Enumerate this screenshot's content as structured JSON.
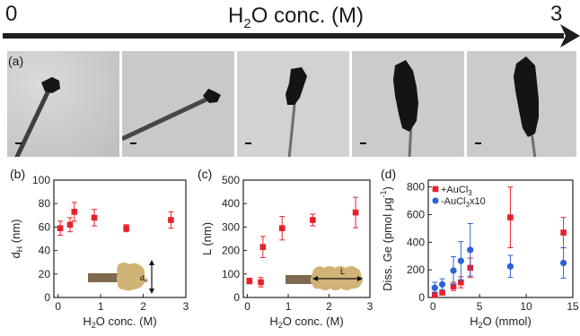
{
  "header": {
    "left_value": "0",
    "right_value": "3",
    "title_main": "H",
    "title_sub": "2",
    "title_rest": "O conc. (M)"
  },
  "panel_a": {
    "label": "(a)",
    "image_count": 5
  },
  "panel_b": {
    "label": "(b)",
    "inset_label_main": "d",
    "inset_label_sub": "H"
  },
  "panel_c": {
    "label": "(c)",
    "inset_label": "L"
  },
  "panel_d": {
    "label": "(d)"
  },
  "colors": {
    "red": "#e8202a",
    "blue": "#2a62d9",
    "rod": "#7f6a4f",
    "coat": "#d2b377"
  },
  "chart_data": [
    {
      "id": "b",
      "type": "scatter",
      "xlabel_main": "H",
      "xlabel_sub": "2",
      "xlabel_rest": "O conc. (M)",
      "ylabel_main": "d",
      "ylabel_sub": "H",
      "ylabel_rest": " (nm)",
      "xlim": [
        -0.1,
        3
      ],
      "ylim": [
        0,
        100
      ],
      "xticks": [
        "0",
        "1",
        "2",
        "3"
      ],
      "yticks": [
        "0",
        "20",
        "40",
        "60",
        "80",
        "100"
      ],
      "series": [
        {
          "color": "#e8202a",
          "points": [
            {
              "x": 0.05,
              "y": 59,
              "err": 6
            },
            {
              "x": 0.28,
              "y": 62,
              "err": 6
            },
            {
              "x": 0.38,
              "y": 73,
              "err": 8
            },
            {
              "x": 0.85,
              "y": 68,
              "err": 7
            },
            {
              "x": 1.6,
              "y": 59,
              "err": 3
            },
            {
              "x": 2.65,
              "y": 66,
              "err": 7
            }
          ]
        }
      ]
    },
    {
      "id": "c",
      "type": "scatter",
      "xlabel_main": "H",
      "xlabel_sub": "2",
      "xlabel_rest": "O conc. (M)",
      "ylabel_main": "L",
      "ylabel_sub": "",
      "ylabel_rest": " (nm)",
      "xlim": [
        -0.1,
        3
      ],
      "ylim": [
        0,
        500
      ],
      "xticks": [
        "0",
        "1",
        "2",
        "3"
      ],
      "yticks": [
        "0",
        "100",
        "200",
        "300",
        "400",
        "500"
      ],
      "series": [
        {
          "color": "#e8202a",
          "points": [
            {
              "x": 0.05,
              "y": 70,
              "err": 12
            },
            {
              "x": 0.33,
              "y": 65,
              "err": 20
            },
            {
              "x": 0.38,
              "y": 215,
              "err": 45
            },
            {
              "x": 0.85,
              "y": 295,
              "err": 50
            },
            {
              "x": 1.6,
              "y": 330,
              "err": 25
            },
            {
              "x": 2.65,
              "y": 362,
              "err": 65
            }
          ]
        }
      ]
    },
    {
      "id": "d",
      "type": "scatter",
      "xlabel_main": "H",
      "xlabel_sub": "2",
      "xlabel_rest": "O (mmol)",
      "ylabel_main": "Diss. Ge (pmol μg",
      "ylabel_sup": "-1",
      "ylabel_rest": ")",
      "xlim": [
        -0.5,
        15
      ],
      "ylim": [
        0,
        850
      ],
      "xticks": [
        "0",
        "5",
        "10",
        "15"
      ],
      "yticks": [
        "0",
        "200",
        "400",
        "600",
        "800"
      ],
      "legend_position": "top-left",
      "series": [
        {
          "name": "+AuCl3",
          "name_main": "+AuCl",
          "name_sub": "3",
          "name_rest": "",
          "color": "#e8202a",
          "marker": "square",
          "points": [
            {
              "x": 0.2,
              "y": 20,
              "err": 5
            },
            {
              "x": 1.0,
              "y": 35,
              "err": 8
            },
            {
              "x": 2.2,
              "y": 80,
              "err": 30
            },
            {
              "x": 3.0,
              "y": 110,
              "err": 40
            },
            {
              "x": 4.0,
              "y": 215,
              "err": 70
            },
            {
              "x": 8.3,
              "y": 580,
              "err": 220
            },
            {
              "x": 14.0,
              "y": 470,
              "err": 110
            }
          ]
        },
        {
          "name": "-AuCl3x10",
          "name_main": "-AuCl",
          "name_sub": "3",
          "name_rest": "x10",
          "color": "#2a62d9",
          "marker": "circle",
          "points": [
            {
              "x": 0.2,
              "y": 70,
              "err": 40
            },
            {
              "x": 1.0,
              "y": 95,
              "err": 40
            },
            {
              "x": 2.2,
              "y": 195,
              "err": 100
            },
            {
              "x": 3.0,
              "y": 265,
              "err": 140
            },
            {
              "x": 4.0,
              "y": 345,
              "err": 190
            },
            {
              "x": 8.3,
              "y": 225,
              "err": 80
            },
            {
              "x": 14.0,
              "y": 250,
              "err": 110
            }
          ]
        }
      ]
    }
  ]
}
